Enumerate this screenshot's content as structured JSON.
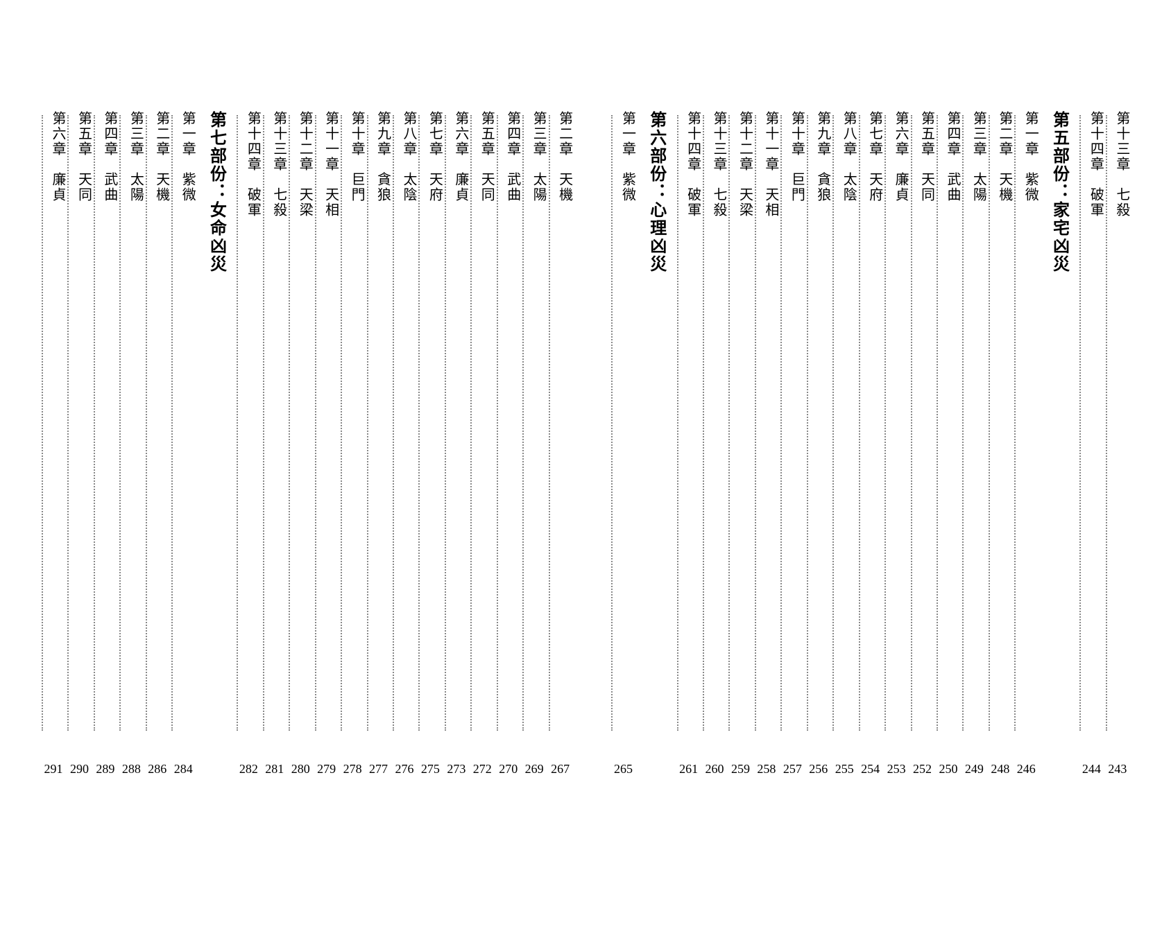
{
  "sections": [
    {
      "preChapters": [
        {
          "label": "第十三章",
          "name": "七殺",
          "page": "243"
        },
        {
          "label": "第十四章",
          "name": "破軍",
          "page": "244"
        }
      ],
      "title": "第五部份：家宅凶災",
      "chapters": [
        {
          "label": "第一章",
          "name": "紫微",
          "page": "246"
        },
        {
          "label": "第二章",
          "name": "天機",
          "page": "248"
        },
        {
          "label": "第三章",
          "name": "太陽",
          "page": "249"
        },
        {
          "label": "第四章",
          "name": "武曲",
          "page": "250"
        },
        {
          "label": "第五章",
          "name": "天同",
          "page": "252"
        },
        {
          "label": "第六章",
          "name": "廉貞",
          "page": "253"
        },
        {
          "label": "第七章",
          "name": "天府",
          "page": "254"
        },
        {
          "label": "第八章",
          "name": "太陰",
          "page": "255"
        },
        {
          "label": "第九章",
          "name": "貪狼",
          "page": "256"
        },
        {
          "label": "第十章",
          "name": "巨門",
          "page": "257"
        },
        {
          "label": "第十一章",
          "name": "天相",
          "page": "258"
        },
        {
          "label": "第十二章",
          "name": "天梁",
          "page": "259"
        },
        {
          "label": "第十三章",
          "name": "七殺",
          "page": "260"
        },
        {
          "label": "第十四章",
          "name": "破軍",
          "page": "261"
        }
      ]
    },
    {
      "title": "第六部份：心理凶災",
      "chapters": [
        {
          "label": "第一章",
          "name": "紫微",
          "page": "265"
        }
      ]
    },
    {
      "preChapters": [
        {
          "label": "第二章",
          "name": "天機",
          "page": "267"
        },
        {
          "label": "第三章",
          "name": "太陽",
          "page": "269"
        },
        {
          "label": "第四章",
          "name": "武曲",
          "page": "270"
        },
        {
          "label": "第五章",
          "name": "天同",
          "page": "272"
        },
        {
          "label": "第六章",
          "name": "廉貞",
          "page": "273"
        },
        {
          "label": "第七章",
          "name": "天府",
          "page": "275"
        },
        {
          "label": "第八章",
          "name": "太陰",
          "page": "276"
        },
        {
          "label": "第九章",
          "name": "貪狼",
          "page": "277"
        },
        {
          "label": "第十章",
          "name": "巨門",
          "page": "278"
        },
        {
          "label": "第十一章",
          "name": "天相",
          "page": "279"
        },
        {
          "label": "第十二章",
          "name": "天梁",
          "page": "280"
        },
        {
          "label": "第十三章",
          "name": "七殺",
          "page": "281"
        },
        {
          "label": "第十四章",
          "name": "破軍",
          "page": "282"
        }
      ],
      "title": "第七部份：女命凶災",
      "chapters": [
        {
          "label": "第一章",
          "name": "紫微",
          "page": "284"
        },
        {
          "label": "第二章",
          "name": "天機",
          "page": "286"
        },
        {
          "label": "第三章",
          "name": "太陽",
          "page": "288"
        },
        {
          "label": "第四章",
          "name": "武曲",
          "page": "289"
        },
        {
          "label": "第五章",
          "name": "天同",
          "page": "290"
        },
        {
          "label": "第六章",
          "name": "廉貞",
          "page": "291"
        }
      ]
    }
  ]
}
